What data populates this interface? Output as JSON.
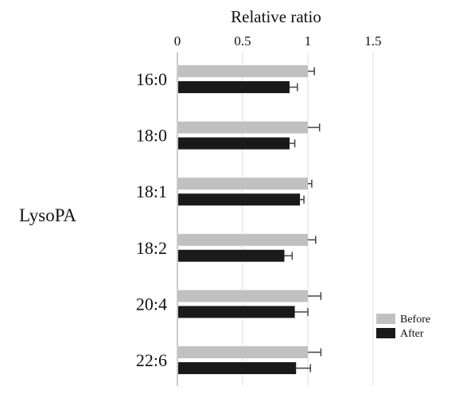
{
  "chart_data": {
    "type": "bar",
    "orientation": "horizontal",
    "title": "",
    "xlabel": "Relative ratio",
    "ylabel": "",
    "group_label": "LysoPA",
    "xlim": [
      0,
      1.5
    ],
    "xticks": [
      0,
      0.5,
      1,
      1.5
    ],
    "x_tick_labels": [
      "0",
      "0.5",
      "1",
      "1.5"
    ],
    "x_axis_position": "top",
    "grid": "vertical",
    "legend_position": "bottom-right",
    "categories": [
      "16:0",
      "18:0",
      "18:1",
      "18:2",
      "20:4",
      "22:6"
    ],
    "series": [
      {
        "name": "Before",
        "color": "#c0c0c0",
        "values": [
          1.0,
          1.0,
          1.0,
          1.0,
          1.0,
          1.0
        ],
        "errors": [
          0.05,
          0.09,
          0.03,
          0.06,
          0.1,
          0.1
        ]
      },
      {
        "name": "After",
        "color": "#1a1a1a",
        "values": [
          0.86,
          0.86,
          0.94,
          0.82,
          0.9,
          0.91
        ],
        "errors": [
          0.06,
          0.04,
          0.03,
          0.06,
          0.1,
          0.11
        ]
      }
    ]
  }
}
